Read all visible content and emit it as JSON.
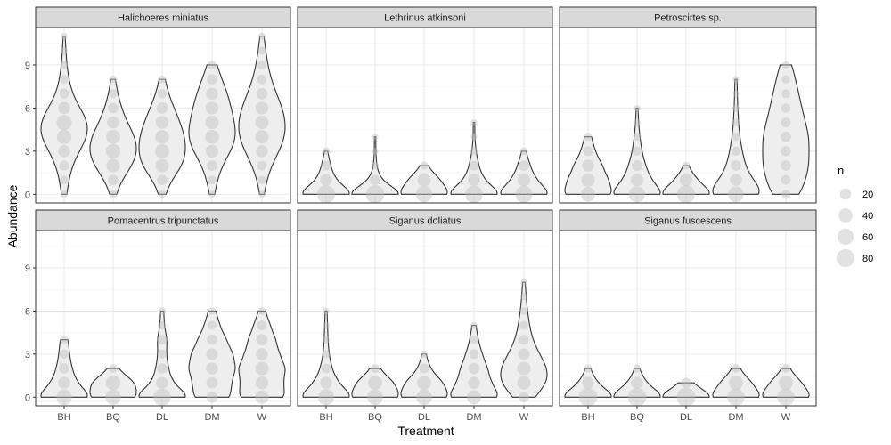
{
  "chart_data": {
    "type": "violin",
    "xlabel": "Treatment",
    "ylabel": "Abundance",
    "categories": [
      "BH",
      "BQ",
      "DL",
      "DM",
      "W"
    ],
    "y_ticks": [
      0,
      3,
      6,
      9
    ],
    "ylim": [
      -0.6,
      11.6
    ],
    "grid": true,
    "legend": {
      "title": "n",
      "entries": [
        {
          "label": "20",
          "value": 20
        },
        {
          "label": "40",
          "value": 40
        },
        {
          "label": "60",
          "value": 60
        },
        {
          "label": "80",
          "value": 80
        }
      ],
      "placement": "right"
    },
    "colors": {
      "violin_fill": "#eeeeee",
      "violin_stroke": "#333333",
      "point": "#bfbfbf",
      "strip_bg": "#d9d9d9",
      "grid_major": "#ebebeb"
    },
    "panels": [
      {
        "title": "Halichoeres miniatus",
        "series": [
          {
            "category": "BH",
            "values": [
              {
                "y": 0,
                "n": 5
              },
              {
                "y": 1,
                "n": 8
              },
              {
                "y": 2,
                "n": 12
              },
              {
                "y": 3,
                "n": 25
              },
              {
                "y": 4,
                "n": 45
              },
              {
                "y": 5,
                "n": 50
              },
              {
                "y": 6,
                "n": 25
              },
              {
                "y": 7,
                "n": 12
              },
              {
                "y": 8,
                "n": 8
              },
              {
                "y": 9,
                "n": 4
              },
              {
                "y": 10,
                "n": 3
              },
              {
                "y": 11,
                "n": 2
              }
            ]
          },
          {
            "category": "BQ",
            "values": [
              {
                "y": 0,
                "n": 5
              },
              {
                "y": 1,
                "n": 15
              },
              {
                "y": 2,
                "n": 35
              },
              {
                "y": 3,
                "n": 45
              },
              {
                "y": 4,
                "n": 40
              },
              {
                "y": 5,
                "n": 25
              },
              {
                "y": 6,
                "n": 15
              },
              {
                "y": 7,
                "n": 8
              },
              {
                "y": 8,
                "n": 4
              }
            ]
          },
          {
            "category": "DL",
            "values": [
              {
                "y": 0,
                "n": 5
              },
              {
                "y": 1,
                "n": 15
              },
              {
                "y": 2,
                "n": 35
              },
              {
                "y": 3,
                "n": 40
              },
              {
                "y": 4,
                "n": 38
              },
              {
                "y": 5,
                "n": 30
              },
              {
                "y": 6,
                "n": 20
              },
              {
                "y": 7,
                "n": 10
              },
              {
                "y": 8,
                "n": 5
              }
            ]
          },
          {
            "category": "DM",
            "values": [
              {
                "y": 0,
                "n": 4
              },
              {
                "y": 1,
                "n": 8
              },
              {
                "y": 2,
                "n": 15
              },
              {
                "y": 3,
                "n": 30
              },
              {
                "y": 4,
                "n": 40
              },
              {
                "y": 5,
                "n": 35
              },
              {
                "y": 6,
                "n": 30
              },
              {
                "y": 7,
                "n": 25
              },
              {
                "y": 8,
                "n": 15
              },
              {
                "y": 9,
                "n": 8
              }
            ]
          },
          {
            "category": "W",
            "values": [
              {
                "y": 0,
                "n": 3
              },
              {
                "y": 1,
                "n": 6
              },
              {
                "y": 2,
                "n": 12
              },
              {
                "y": 3,
                "n": 25
              },
              {
                "y": 4,
                "n": 35
              },
              {
                "y": 5,
                "n": 35
              },
              {
                "y": 6,
                "n": 30
              },
              {
                "y": 7,
                "n": 20
              },
              {
                "y": 8,
                "n": 12
              },
              {
                "y": 9,
                "n": 8
              },
              {
                "y": 10,
                "n": 5
              },
              {
                "y": 11,
                "n": 3
              }
            ]
          }
        ]
      },
      {
        "title": "Lethrinus atkinsoni",
        "series": [
          {
            "category": "BH",
            "values": [
              {
                "y": 0,
                "n": 80
              },
              {
                "y": 1,
                "n": 25
              },
              {
                "y": 2,
                "n": 12
              },
              {
                "y": 3,
                "n": 4
              }
            ]
          },
          {
            "category": "BQ",
            "values": [
              {
                "y": 0,
                "n": 85
              },
              {
                "y": 1,
                "n": 15
              },
              {
                "y": 2,
                "n": 4
              },
              {
                "y": 3,
                "n": 2
              },
              {
                "y": 4,
                "n": 2
              }
            ]
          },
          {
            "category": "DL",
            "values": [
              {
                "y": 0,
                "n": 60
              },
              {
                "y": 1,
                "n": 35
              },
              {
                "y": 2,
                "n": 6
              }
            ]
          },
          {
            "category": "DM",
            "values": [
              {
                "y": 0,
                "n": 75
              },
              {
                "y": 1,
                "n": 25
              },
              {
                "y": 2,
                "n": 12
              },
              {
                "y": 3,
                "n": 5
              },
              {
                "y": 4,
                "n": 2
              },
              {
                "y": 5,
                "n": 2
              }
            ]
          },
          {
            "category": "W",
            "values": [
              {
                "y": 0,
                "n": 70
              },
              {
                "y": 1,
                "n": 30
              },
              {
                "y": 2,
                "n": 15
              },
              {
                "y": 3,
                "n": 5
              }
            ]
          }
        ]
      },
      {
        "title": "Petroscirtes sp.",
        "series": [
          {
            "category": "BH",
            "values": [
              {
                "y": 0,
                "n": 45
              },
              {
                "y": 1,
                "n": 35
              },
              {
                "y": 2,
                "n": 25
              },
              {
                "y": 3,
                "n": 12
              },
              {
                "y": 4,
                "n": 6
              }
            ]
          },
          {
            "category": "BQ",
            "values": [
              {
                "y": 0,
                "n": 60
              },
              {
                "y": 1,
                "n": 30
              },
              {
                "y": 2,
                "n": 18
              },
              {
                "y": 3,
                "n": 10
              },
              {
                "y": 4,
                "n": 6
              },
              {
                "y": 5,
                "n": 3
              },
              {
                "y": 6,
                "n": 2
              }
            ]
          },
          {
            "category": "DL",
            "values": [
              {
                "y": 0,
                "n": 80
              },
              {
                "y": 1,
                "n": 30
              },
              {
                "y": 2,
                "n": 5
              }
            ]
          },
          {
            "category": "DM",
            "values": [
              {
                "y": 0,
                "n": 55
              },
              {
                "y": 1,
                "n": 25
              },
              {
                "y": 2,
                "n": 15
              },
              {
                "y": 3,
                "n": 10
              },
              {
                "y": 4,
                "n": 6
              },
              {
                "y": 5,
                "n": 4
              },
              {
                "y": 6,
                "n": 3
              },
              {
                "y": 7,
                "n": 2
              },
              {
                "y": 8,
                "n": 2
              }
            ]
          },
          {
            "category": "W",
            "values": [
              {
                "y": 0,
                "n": 10
              },
              {
                "y": 1,
                "n": 12
              },
              {
                "y": 2,
                "n": 15
              },
              {
                "y": 3,
                "n": 14
              },
              {
                "y": 4,
                "n": 15
              },
              {
                "y": 5,
                "n": 12
              },
              {
                "y": 6,
                "n": 10
              },
              {
                "y": 7,
                "n": 8
              },
              {
                "y": 8,
                "n": 6
              },
              {
                "y": 9,
                "n": 4
              }
            ]
          }
        ]
      },
      {
        "title": "Pomacentrus tripunctatus",
        "series": [
          {
            "category": "BH",
            "values": [
              {
                "y": 0,
                "n": 55
              },
              {
                "y": 1,
                "n": 25
              },
              {
                "y": 2,
                "n": 15
              },
              {
                "y": 3,
                "n": 10
              },
              {
                "y": 4,
                "n": 8
              }
            ]
          },
          {
            "category": "BQ",
            "values": [
              {
                "y": 0,
                "n": 50
              },
              {
                "y": 1,
                "n": 45
              },
              {
                "y": 2,
                "n": 8
              }
            ]
          },
          {
            "category": "DL",
            "values": [
              {
                "y": 0,
                "n": 70
              },
              {
                "y": 1,
                "n": 25
              },
              {
                "y": 2,
                "n": 15
              },
              {
                "y": 3,
                "n": 10
              },
              {
                "y": 4,
                "n": 12
              },
              {
                "y": 5,
                "n": 5
              },
              {
                "y": 6,
                "n": 4
              }
            ]
          },
          {
            "category": "DM",
            "values": [
              {
                "y": 0,
                "n": 20
              },
              {
                "y": 1,
                "n": 20
              },
              {
                "y": 2,
                "n": 25
              },
              {
                "y": 3,
                "n": 22
              },
              {
                "y": 4,
                "n": 15
              },
              {
                "y": 5,
                "n": 8
              },
              {
                "y": 6,
                "n": 4
              }
            ]
          },
          {
            "category": "W",
            "values": [
              {
                "y": 0,
                "n": 35
              },
              {
                "y": 1,
                "n": 30
              },
              {
                "y": 2,
                "n": 35
              },
              {
                "y": 3,
                "n": 25
              },
              {
                "y": 4,
                "n": 20
              },
              {
                "y": 5,
                "n": 12
              },
              {
                "y": 6,
                "n": 5
              }
            ]
          }
        ]
      },
      {
        "title": "Siganus doliatus",
        "series": [
          {
            "category": "BH",
            "values": [
              {
                "y": 0,
                "n": 60
              },
              {
                "y": 1,
                "n": 25
              },
              {
                "y": 2,
                "n": 12
              },
              {
                "y": 3,
                "n": 6
              },
              {
                "y": 4,
                "n": 4
              },
              {
                "y": 5,
                "n": 3
              },
              {
                "y": 6,
                "n": 2
              }
            ]
          },
          {
            "category": "BQ",
            "values": [
              {
                "y": 0,
                "n": 55
              },
              {
                "y": 1,
                "n": 40
              },
              {
                "y": 2,
                "n": 8
              }
            ]
          },
          {
            "category": "DL",
            "values": [
              {
                "y": 0,
                "n": 55
              },
              {
                "y": 1,
                "n": 40
              },
              {
                "y": 2,
                "n": 12
              },
              {
                "y": 3,
                "n": 4
              }
            ]
          },
          {
            "category": "DM",
            "values": [
              {
                "y": 0,
                "n": 40
              },
              {
                "y": 1,
                "n": 25
              },
              {
                "y": 2,
                "n": 20
              },
              {
                "y": 3,
                "n": 12
              },
              {
                "y": 4,
                "n": 6
              },
              {
                "y": 5,
                "n": 3
              }
            ]
          },
          {
            "category": "W",
            "values": [
              {
                "y": 0,
                "n": 15
              },
              {
                "y": 1,
                "n": 35
              },
              {
                "y": 2,
                "n": 35
              },
              {
                "y": 3,
                "n": 22
              },
              {
                "y": 4,
                "n": 12
              },
              {
                "y": 5,
                "n": 8
              },
              {
                "y": 6,
                "n": 5
              },
              {
                "y": 7,
                "n": 3
              },
              {
                "y": 8,
                "n": 2
              }
            ]
          }
        ]
      },
      {
        "title": "Siganus fuscescens",
        "series": [
          {
            "category": "BH",
            "values": [
              {
                "y": 0,
                "n": 85
              },
              {
                "y": 1,
                "n": 25
              },
              {
                "y": 2,
                "n": 6
              }
            ]
          },
          {
            "category": "BQ",
            "values": [
              {
                "y": 0,
                "n": 85
              },
              {
                "y": 1,
                "n": 25
              },
              {
                "y": 2,
                "n": 6
              }
            ]
          },
          {
            "category": "DL",
            "values": [
              {
                "y": 0,
                "n": 90
              },
              {
                "y": 1,
                "n": 15
              }
            ]
          },
          {
            "category": "DM",
            "values": [
              {
                "y": 0,
                "n": 70
              },
              {
                "y": 1,
                "n": 40
              },
              {
                "y": 2,
                "n": 8
              }
            ]
          },
          {
            "category": "W",
            "values": [
              {
                "y": 0,
                "n": 70
              },
              {
                "y": 1,
                "n": 40
              },
              {
                "y": 2,
                "n": 8
              }
            ]
          }
        ]
      }
    ]
  }
}
